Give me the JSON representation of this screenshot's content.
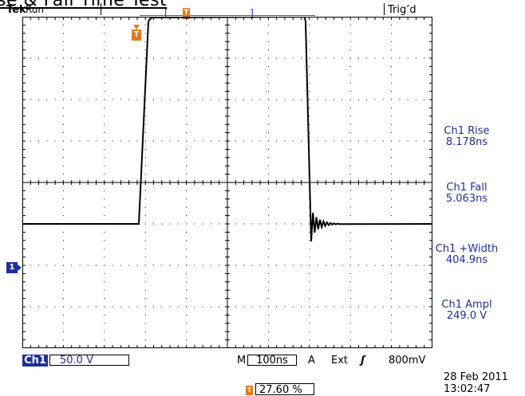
{
  "page_title": "se & Fall Time Test",
  "header": {
    "brand": "Tek",
    "run_status": "Run",
    "trig_status": "Trig’d",
    "trig_pos_icon": "T",
    "bracket_left": "[",
    "bracket_right": "]"
  },
  "display": {
    "trigger_marker": "T",
    "ch1_marker": "1",
    "waveform": {
      "baseline_divisions": -1.0,
      "high_divisions": 4.0,
      "rise_time_ns": 8.178,
      "fall_time_ns": 5.063,
      "width_ns": 404.9
    },
    "colors": {
      "channel": "#1e2f9c",
      "trigger": "#e07b1a",
      "trace": "#000000"
    }
  },
  "measurements": [
    {
      "label": "Ch1 Rise",
      "value": "8.178ns"
    },
    {
      "label": "Ch1 Fall",
      "value": "5.063ns"
    },
    {
      "label": "Ch1 +Width",
      "value": "404.9ns"
    },
    {
      "label": "Ch1 Ampl",
      "value": "249.0 V"
    }
  ],
  "bottom": {
    "ch1_tag": "Ch1",
    "ch1_scale": "50.0 V",
    "m_label": "M",
    "timebase": "100ns",
    "a_label": "A",
    "trigger_source": "Ext",
    "slope_icon": "ʃ",
    "trigger_level": "800mV",
    "trig_pos_icon": "T",
    "trig_pos_value": "27.60 %",
    "date": "28 Feb  2011",
    "time": "13:02:47"
  }
}
